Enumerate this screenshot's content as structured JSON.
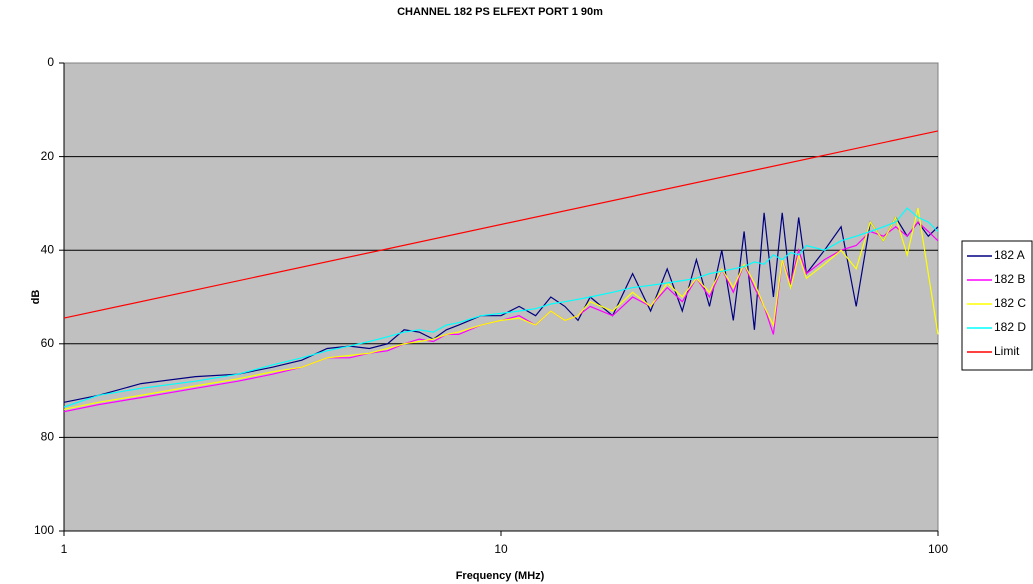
{
  "chart_data": {
    "type": "line",
    "title": "CHANNEL  182   PS ELFEXT  PORT 1 90m",
    "x_label": "Frequency (MHz)",
    "y_label": "dB",
    "log_x": true,
    "y_inverted": true,
    "grid": true,
    "legend": "right",
    "xlim": [
      1,
      100
    ],
    "xticks": [
      1,
      10,
      100
    ],
    "ylim": [
      0,
      100
    ],
    "yticks": [
      0,
      20,
      40,
      60,
      80,
      100
    ],
    "x": [
      1,
      1.2,
      1.5,
      2,
      2.5,
      3,
      3.5,
      4,
      4.5,
      5,
      5.5,
      6,
      6.5,
      7,
      7.5,
      8,
      9,
      10,
      11,
      12,
      13,
      14,
      15,
      16,
      18,
      20,
      22,
      24,
      26,
      28,
      30,
      32,
      34,
      36,
      38,
      40,
      42,
      44,
      46,
      48,
      50,
      55,
      60,
      65,
      70,
      75,
      80,
      85,
      90,
      95,
      100
    ],
    "series": [
      {
        "name": "182 A",
        "color": "#000080",
        "values": [
          72.5,
          71,
          68.5,
          67,
          66.5,
          65,
          63.5,
          61,
          60.5,
          61,
          60,
          57,
          57.5,
          59,
          57,
          56,
          54,
          54,
          52,
          54,
          50,
          52,
          55,
          50,
          54,
          45,
          53,
          44,
          53,
          42,
          52,
          40,
          55,
          36,
          57,
          32,
          50,
          32,
          48,
          33,
          45,
          40,
          35,
          52,
          34,
          38,
          33,
          37,
          34,
          37,
          35
        ]
      },
      {
        "name": "182 B",
        "color": "#ff00ff",
        "values": [
          74.5,
          73,
          71.5,
          69.5,
          68,
          66.5,
          65,
          63,
          63,
          62,
          61.5,
          60,
          59,
          59.5,
          58,
          58,
          56,
          55,
          54,
          56,
          53,
          55,
          54,
          52,
          54,
          50,
          52,
          48,
          51,
          46,
          50,
          44,
          49,
          43,
          48,
          52,
          58,
          42,
          47,
          40,
          45,
          42,
          40,
          39,
          36,
          37,
          35,
          37,
          34,
          36,
          38
        ]
      },
      {
        "name": "182 C",
        "color": "#ffff00",
        "values": [
          74,
          72.5,
          71,
          69,
          67.5,
          66,
          65,
          63,
          62.5,
          62,
          61,
          60,
          59.5,
          59,
          58,
          57.5,
          56,
          55,
          54.5,
          56,
          53,
          55,
          54,
          51,
          53,
          49,
          52,
          47,
          50,
          46,
          49,
          44,
          48,
          43,
          47,
          52,
          56,
          42,
          48,
          41,
          46,
          43,
          40,
          44,
          34,
          38,
          33,
          41,
          31,
          45,
          58
        ]
      },
      {
        "name": "182 D",
        "color": "#00ffff",
        "values": [
          73.5,
          71,
          69.5,
          68,
          66.5,
          64.5,
          63,
          61.5,
          60.5,
          59.5,
          58.5,
          57.5,
          57,
          57.5,
          56,
          55.5,
          54,
          53.5,
          53,
          52.5,
          51.5,
          51,
          50.5,
          50,
          49,
          48,
          47.5,
          47,
          46.5,
          46,
          45,
          44.5,
          44,
          43.5,
          42.5,
          43,
          41,
          42,
          40.5,
          41,
          39,
          40,
          38,
          37,
          36,
          35,
          34,
          31,
          33,
          34,
          36
        ]
      },
      {
        "name": "Limit",
        "color": "#ff0000",
        "x": [
          1,
          100
        ],
        "values": [
          54.5,
          14.5
        ]
      }
    ]
  }
}
